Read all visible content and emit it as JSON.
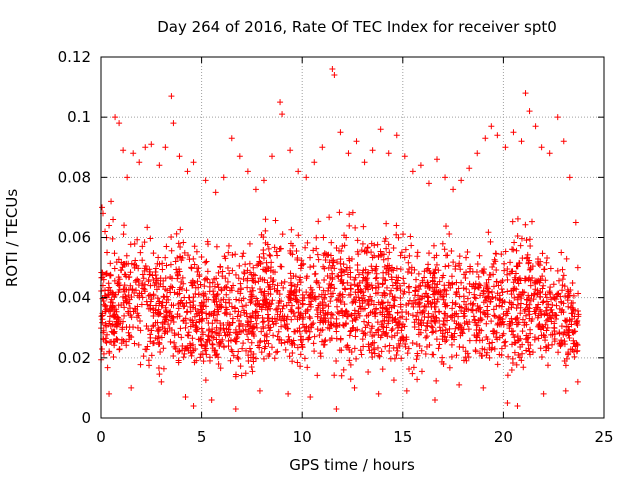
{
  "chart_data": {
    "type": "scatter",
    "title": "Day 264 of 2016, Rate Of TEC Index for receiver spt0",
    "xlabel": "GPS time / hours",
    "ylabel": "ROTI / TECUs",
    "xlim": [
      0,
      25
    ],
    "ylim": [
      0,
      0.12
    ],
    "xticks": [
      0,
      5,
      10,
      15,
      20,
      25
    ],
    "yticks": [
      0,
      0.02,
      0.04,
      0.06,
      0.08,
      0.1,
      0.12
    ],
    "xtick_labels": [
      "0",
      "5",
      "10",
      "15",
      "20",
      "25"
    ],
    "ytick_labels": [
      "0",
      "0.02",
      "0.04",
      "0.06",
      "0.08",
      "0.1",
      "0.12"
    ],
    "grid": true,
    "marker": "+",
    "color": "#ff0000",
    "series": [
      {
        "name": "spt0",
        "x_range": [
          0,
          23.75
        ],
        "points": [
          [
            0.05,
            0.07
          ],
          [
            0.1,
            0.068
          ],
          [
            0.2,
            0.062
          ],
          [
            0.3,
            0.055
          ],
          [
            0.4,
            0.064
          ],
          [
            0.5,
            0.072
          ],
          [
            0.6,
            0.066
          ],
          [
            0.7,
            0.1
          ],
          [
            0.9,
            0.098
          ],
          [
            1.1,
            0.089
          ],
          [
            1.3,
            0.08
          ],
          [
            1.6,
            0.088
          ],
          [
            1.9,
            0.085
          ],
          [
            2.2,
            0.09
          ],
          [
            2.5,
            0.091
          ],
          [
            2.9,
            0.084
          ],
          [
            3.2,
            0.09
          ],
          [
            3.5,
            0.107
          ],
          [
            3.6,
            0.098
          ],
          [
            3.9,
            0.087
          ],
          [
            4.3,
            0.082
          ],
          [
            4.6,
            0.085
          ],
          [
            5.2,
            0.079
          ],
          [
            5.7,
            0.075
          ],
          [
            6.1,
            0.08
          ],
          [
            6.5,
            0.093
          ],
          [
            6.9,
            0.087
          ],
          [
            7.3,
            0.082
          ],
          [
            7.7,
            0.076
          ],
          [
            8.1,
            0.079
          ],
          [
            8.5,
            0.087
          ],
          [
            8.9,
            0.105
          ],
          [
            9.0,
            0.101
          ],
          [
            9.4,
            0.089
          ],
          [
            9.8,
            0.082
          ],
          [
            10.2,
            0.08
          ],
          [
            10.6,
            0.085
          ],
          [
            11.0,
            0.09
          ],
          [
            11.5,
            0.116
          ],
          [
            11.6,
            0.114
          ],
          [
            11.9,
            0.095
          ],
          [
            12.3,
            0.088
          ],
          [
            12.7,
            0.092
          ],
          [
            13.1,
            0.085
          ],
          [
            13.5,
            0.089
          ],
          [
            13.9,
            0.096
          ],
          [
            14.3,
            0.088
          ],
          [
            14.7,
            0.094
          ],
          [
            15.1,
            0.087
          ],
          [
            15.5,
            0.082
          ],
          [
            15.9,
            0.084
          ],
          [
            16.3,
            0.078
          ],
          [
            16.7,
            0.086
          ],
          [
            17.1,
            0.08
          ],
          [
            17.5,
            0.076
          ],
          [
            17.9,
            0.079
          ],
          [
            18.3,
            0.083
          ],
          [
            18.7,
            0.088
          ],
          [
            19.1,
            0.093
          ],
          [
            19.4,
            0.097
          ],
          [
            19.7,
            0.094
          ],
          [
            20.1,
            0.09
          ],
          [
            20.5,
            0.095
          ],
          [
            20.9,
            0.092
          ],
          [
            21.1,
            0.108
          ],
          [
            21.3,
            0.102
          ],
          [
            21.6,
            0.097
          ],
          [
            21.9,
            0.09
          ],
          [
            22.3,
            0.088
          ],
          [
            22.7,
            0.1
          ],
          [
            23.0,
            0.092
          ],
          [
            23.3,
            0.08
          ],
          [
            23.6,
            0.065
          ],
          [
            23.7,
            0.05
          ],
          [
            0.4,
            0.008
          ],
          [
            1.5,
            0.01
          ],
          [
            3.0,
            0.012
          ],
          [
            4.2,
            0.007
          ],
          [
            4.6,
            0.004
          ],
          [
            5.5,
            0.006
          ],
          [
            6.7,
            0.003
          ],
          [
            7.9,
            0.009
          ],
          [
            9.3,
            0.008
          ],
          [
            10.4,
            0.007
          ],
          [
            11.7,
            0.003
          ],
          [
            12.6,
            0.01
          ],
          [
            13.8,
            0.008
          ],
          [
            15.2,
            0.009
          ],
          [
            16.6,
            0.006
          ],
          [
            17.8,
            0.011
          ],
          [
            19.0,
            0.01
          ],
          [
            20.2,
            0.005
          ],
          [
            20.7,
            0.004
          ],
          [
            22.0,
            0.008
          ],
          [
            23.1,
            0.009
          ],
          [
            23.7,
            0.012
          ]
        ],
        "density_envelope": [
          [
            0,
            0.015,
            0.062
          ],
          [
            1,
            0.012,
            0.068
          ],
          [
            2,
            0.012,
            0.072
          ],
          [
            3,
            0.01,
            0.07
          ],
          [
            4,
            0.008,
            0.072
          ],
          [
            5,
            0.008,
            0.068
          ],
          [
            6,
            0.008,
            0.066
          ],
          [
            7,
            0.008,
            0.066
          ],
          [
            8,
            0.01,
            0.07
          ],
          [
            9,
            0.01,
            0.074
          ],
          [
            10,
            0.01,
            0.07
          ],
          [
            11,
            0.01,
            0.074
          ],
          [
            12,
            0.01,
            0.074
          ],
          [
            13,
            0.01,
            0.072
          ],
          [
            14,
            0.01,
            0.074
          ],
          [
            15,
            0.01,
            0.07
          ],
          [
            16,
            0.01,
            0.07
          ],
          [
            17,
            0.012,
            0.068
          ],
          [
            18,
            0.012,
            0.068
          ],
          [
            19,
            0.012,
            0.07
          ],
          [
            20,
            0.012,
            0.07
          ],
          [
            21,
            0.01,
            0.074
          ],
          [
            22,
            0.012,
            0.068
          ],
          [
            23,
            0.012,
            0.06
          ],
          [
            23.75,
            0.015,
            0.048
          ]
        ]
      }
    ]
  }
}
